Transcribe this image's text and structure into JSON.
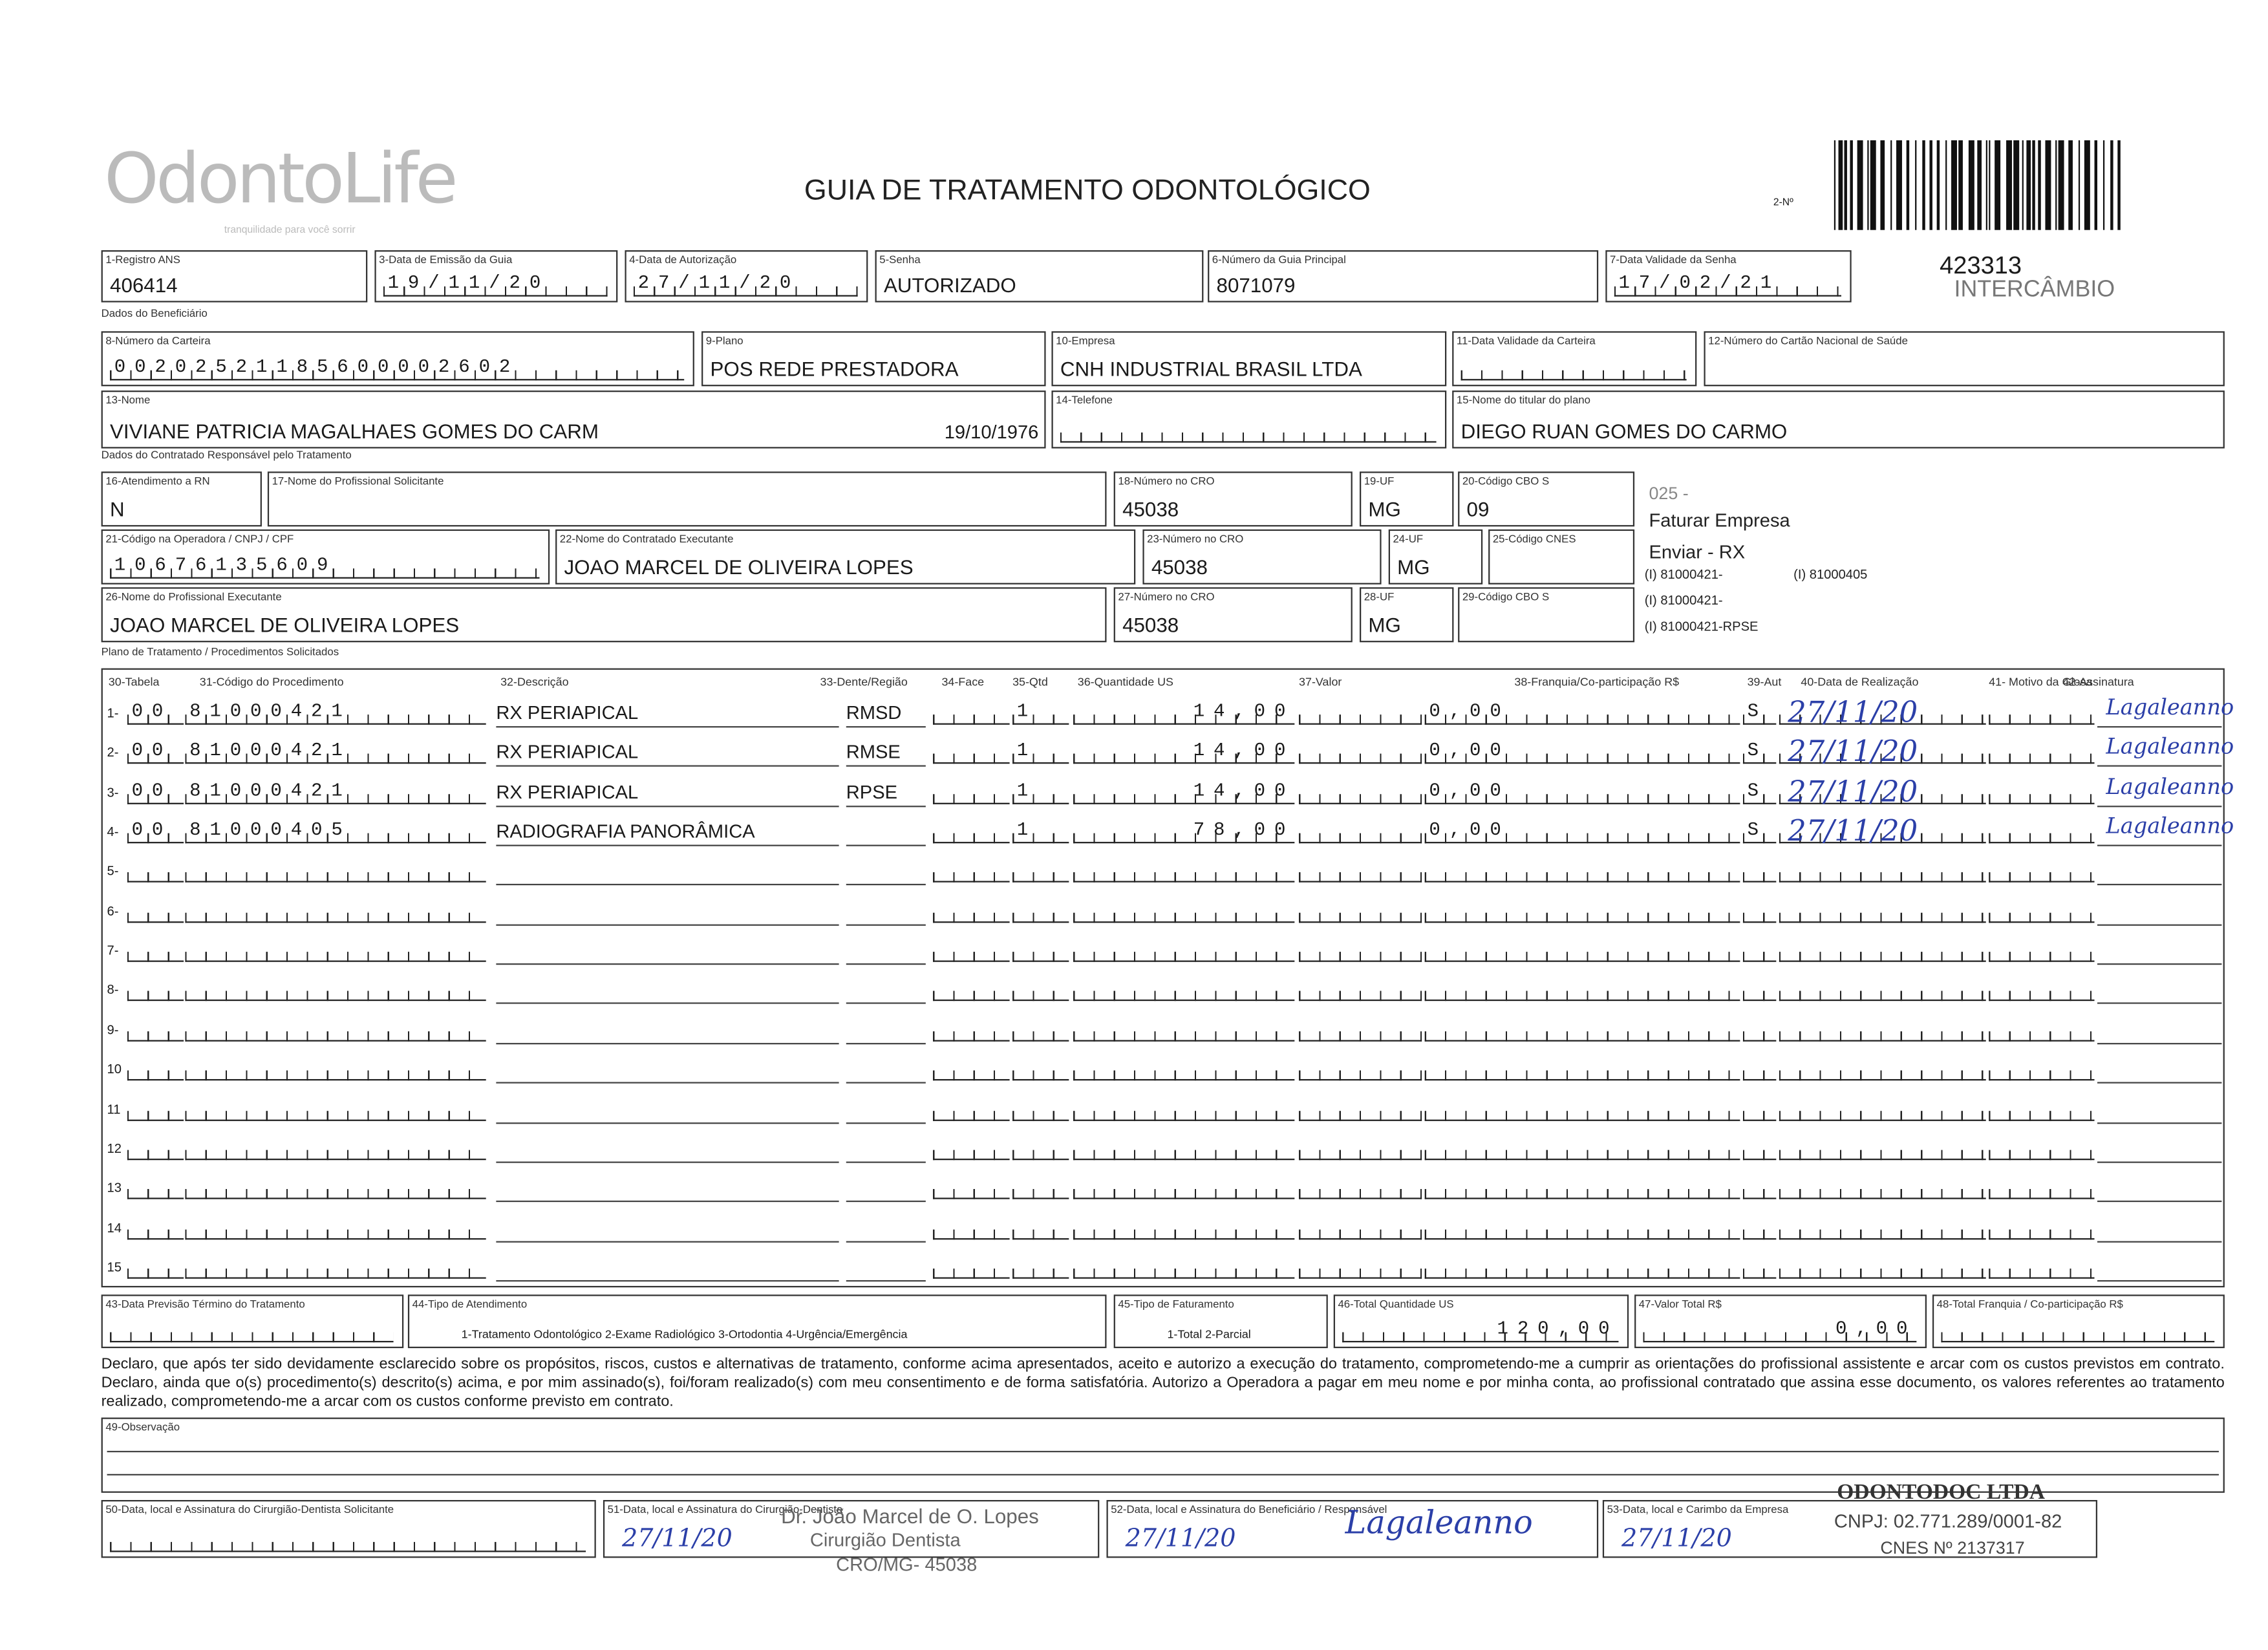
{
  "header": {
    "logo": "OdontoLife",
    "tagline": "tranquilidade para você sorrir",
    "title": "GUIA DE TRATAMENTO ODONTOLÓGICO",
    "guide_number_label": "2-Nº",
    "stamp_number": "423313",
    "stamp_text": "INTERCÂMBIO"
  },
  "sections": [
    "Dados do Beneficiário",
    "Dados do Contratado Responsável pelo Tratamento",
    "Plano de Tratamento / Procedimentos Solicitados"
  ],
  "fields": [
    {
      "label": "1-Registro ANS",
      "value": "406414"
    },
    {
      "label": "3-Data de Emissão da Guia",
      "value": "19/11/20"
    },
    {
      "label": "4-Data de Autorização",
      "value": "27/11/20"
    },
    {
      "label": "5-Senha",
      "value": "AUTORIZADO"
    },
    {
      "label": "6-Número da Guia Principal",
      "value": "8071079"
    },
    {
      "label": "7-Data Validade da Senha",
      "value": "17/02/21"
    },
    {
      "label": "8-Número da Carteira",
      "value": "00202521185600002602"
    },
    {
      "label": "9-Plano",
      "value": "POS REDE PRESTADORA"
    },
    {
      "label": "10-Empresa",
      "value": "CNH INDUSTRIAL BRASIL LTDA"
    },
    {
      "label": "11-Data Validade da Carteira"
    },
    {
      "label": "12-Número do Cartão Nacional de Saúde"
    },
    {
      "label": "13-Nome",
      "value": "VIVIANE PATRICIA MAGALHAES GOMES DO CARM",
      "note": "19/10/1976"
    },
    {
      "label": "14-Telefone"
    },
    {
      "label": "15-Nome do titular do plano",
      "value": "DIEGO RUAN GOMES DO CARMO"
    },
    {
      "label": "16-Atendimento a RN",
      "value": "N"
    },
    {
      "label": "17-Nome do Profissional Solicitante"
    },
    {
      "label": "18-Número no CRO",
      "value": "45038"
    },
    {
      "label": "19-UF",
      "value": "MG"
    },
    {
      "label": "20-Código CBO S",
      "value": "09"
    },
    {
      "label": "21-Código na Operadora / CNPJ / CPF",
      "value": "10676135609"
    },
    {
      "label": "22-Nome do Contratado Executante",
      "value": "JOAO MARCEL DE OLIVEIRA LOPES"
    },
    {
      "label": "23-Número no CRO",
      "value": "45038"
    },
    {
      "label": "24-UF",
      "value": "MG"
    },
    {
      "label": "25-Código CNES"
    },
    {
      "label": "26-Nome do Profissional Executante",
      "value": "JOAO MARCEL DE OLIVEIRA LOPES"
    },
    {
      "label": "27-Número no CRO",
      "value": "45038"
    },
    {
      "label": "28-UF",
      "value": "MG"
    },
    {
      "label": "29-Código CBO S"
    },
    {
      "label": "43-Data Previsão Término do Tratamento"
    },
    {
      "label": "44-Tipo de Atendimento",
      "note": "1-Tratamento Odontológico 2-Exame Radiológico 3-Ortodontia 4-Urgência/Emergência"
    },
    {
      "label": "45-Tipo de Faturamento",
      "note": "1-Total 2-Parcial"
    },
    {
      "label": "46-Total Quantidade US",
      "value": "120,00"
    },
    {
      "label": "47-Valor Total R$",
      "value": "0,00"
    },
    {
      "label": "48-Total Franquia / Co-participação R$"
    },
    {
      "label": "49-Observação"
    },
    {
      "label": "50-Data, local e Assinatura do Cirurgião-Dentista Solicitante"
    },
    {
      "label": "51-Data, local e Assinatura do Cirurgião-Dentista",
      "value": "27/11/20"
    },
    {
      "label": "52-Data, local e Assinatura do Beneficiário / Responsável",
      "value": "27/11/20"
    },
    {
      "label": "53-Data, local e Carimbo da Empresa",
      "value": "27/11/20"
    }
  ],
  "notes": [
    "025 -",
    "Faturar Empresa",
    "Enviar - RX",
    "(I) 81000421-",
    "(I) 81000405",
    "(I) 81000421-",
    "(I) 81000421-RPSE"
  ],
  "table": {
    "headers": [
      "30-Tabela",
      "31-Código do Procedimento",
      "32-Descrição",
      "33-Dente/Região",
      "34-Face",
      "35-Qtd",
      "36-Quantidade US",
      "37-Valor",
      "38-Franquia/Co-participação R$",
      "39-Aut",
      "40-Data de Realização",
      "41- Motivo da Glosa",
      "42-Assinatura"
    ],
    "rows": [
      {
        "number": "1-",
        "tabela": "00",
        "code": "81000421",
        "description": "RX PERIAPICAL",
        "region": "RMSD",
        "qty": "1",
        "us": "14,00",
        "franchise": "0,00",
        "aut": "S",
        "date": "27/11/20",
        "signature": "Lagaleanno"
      },
      {
        "number": "2-",
        "tabela": "00",
        "code": "81000421",
        "description": "RX PERIAPICAL",
        "region": "RMSE",
        "qty": "1",
        "us": "14,00",
        "franchise": "0,00",
        "aut": "S",
        "date": "27/11/20",
        "signature": "Lagaleanno"
      },
      {
        "number": "3-",
        "tabela": "00",
        "code": "81000421",
        "description": "RX PERIAPICAL",
        "region": "RPSE",
        "qty": "1",
        "us": "14,00",
        "franchise": "0,00",
        "aut": "S",
        "date": "27/11/20",
        "signature": "Lagaleanno"
      },
      {
        "number": "4-",
        "tabela": "00",
        "code": "81000405",
        "description": "RADIOGRAFIA PANORÂMICA",
        "qty": "1",
        "us": "78,00",
        "franchise": "0,00",
        "aut": "S",
        "date": "27/11/20",
        "signature": "Lagaleanno"
      },
      {
        "number": "5-"
      },
      {
        "number": "6-"
      },
      {
        "number": "7-"
      },
      {
        "number": "8-"
      },
      {
        "number": "9-"
      },
      {
        "number": "10"
      },
      {
        "number": "11"
      },
      {
        "number": "12"
      },
      {
        "number": "13"
      },
      {
        "number": "14"
      },
      {
        "number": "15"
      }
    ]
  },
  "declaration": "Declaro, que após ter sido devidamente esclarecido sobre os propósitos, riscos, custos e alternativas de tratamento, conforme acima apresentados, aceito e autorizo a execução do tratamento, comprometendo-me a cumprir as orientações do profissional assistente e arcar com os custos previstos em contrato. Declaro, ainda que o(s) procedimento(s) descrito(s) acima, e por mim assinado(s), foi/foram realizado(s) com meu consentimento e de forma satisfatória. Autorizo a Operadora a pagar em meu nome e por minha conta, ao profissional contratado que assina esse documento, os valores referentes ao tratamento realizado, comprometendo-me a arcar com os custos conforme previsto em contrato.",
  "stamps": [
    "Dr. João Marcel de O. Lopes",
    "Cirurgião Dentista",
    "CRO/MG- 45038",
    "ODONTODOC LTDA",
    "CNPJ: 02.771.289/0001-82",
    "CNES Nº 2137317"
  ],
  "signature_52": "Lagaleanno"
}
